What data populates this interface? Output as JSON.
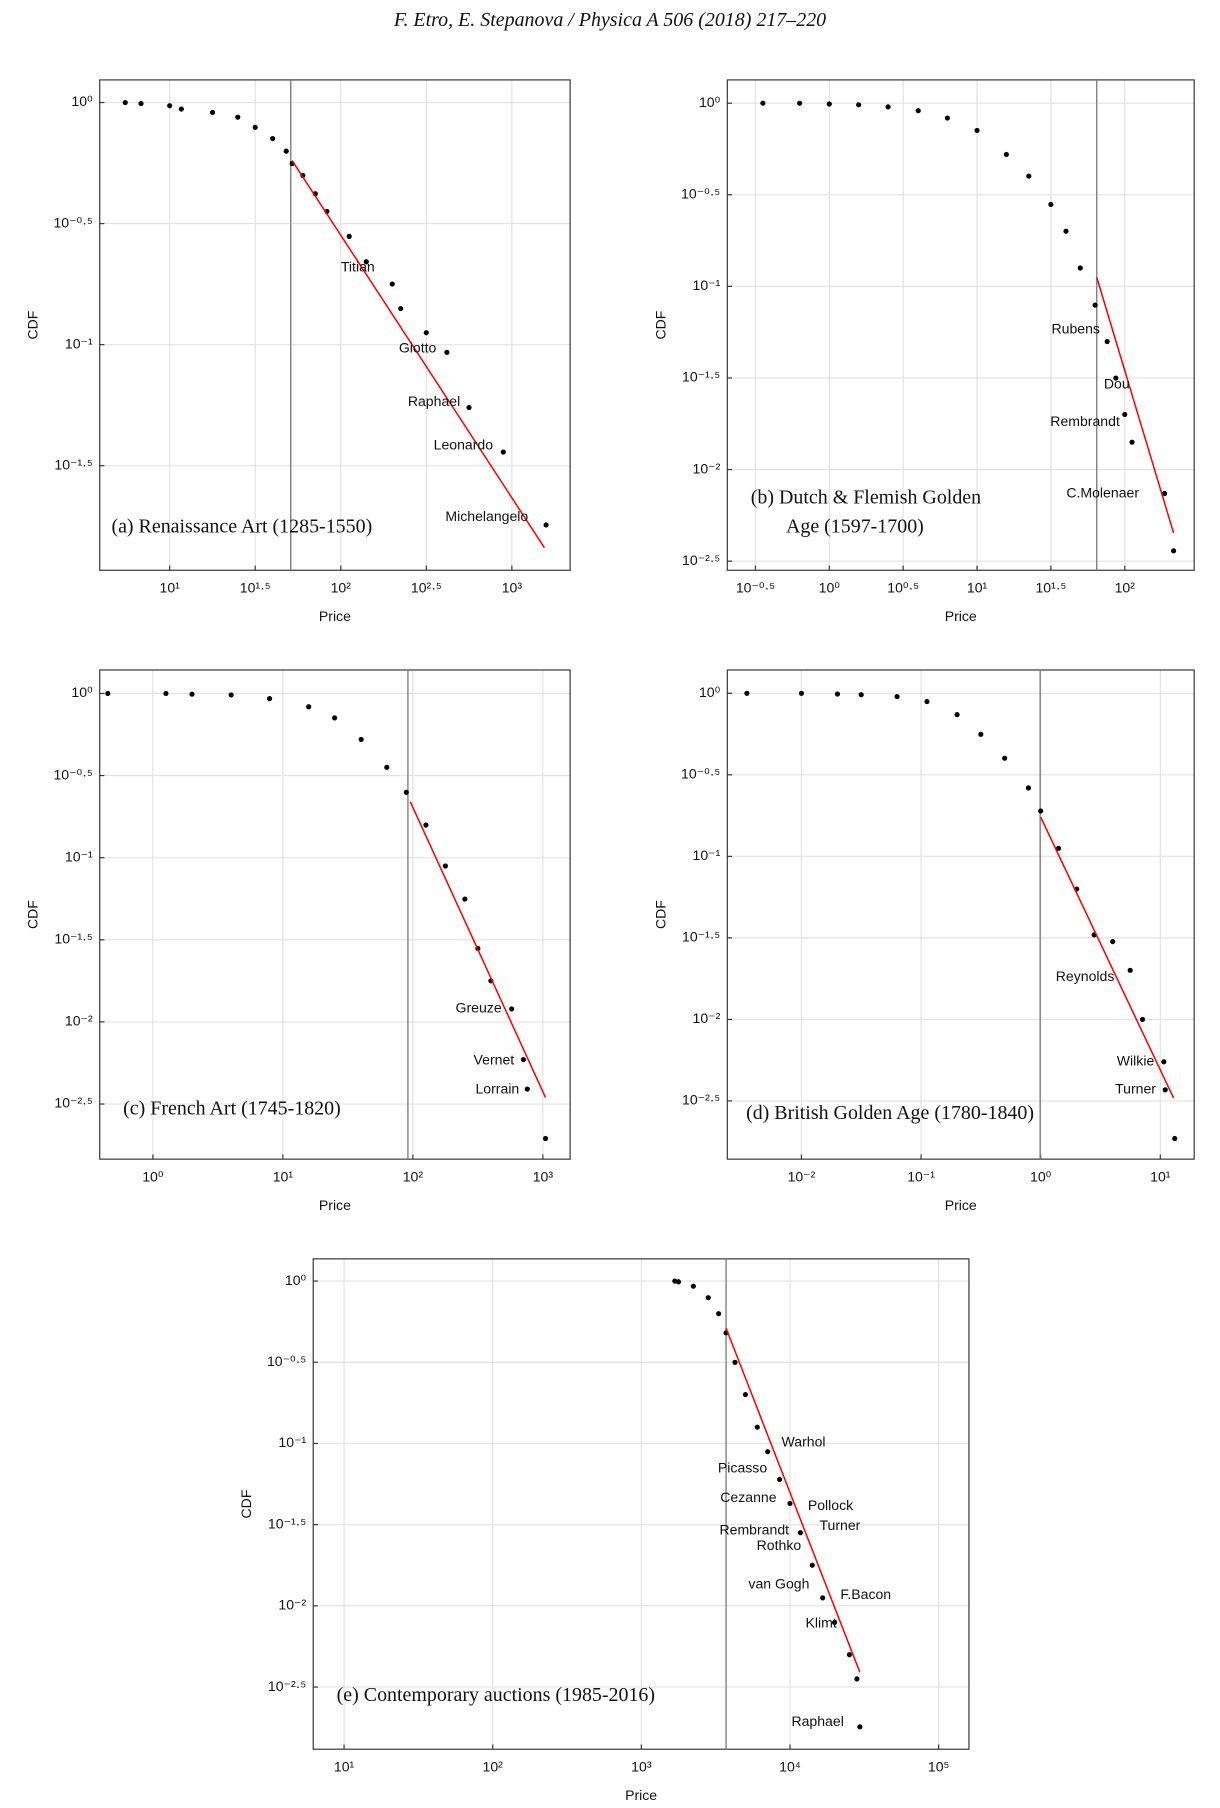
{
  "header": "F. Etro, E. Stepanova / Physica A 506 (2018) 217–220",
  "chart_data": [
    {
      "type": "scatter",
      "title": [
        "(a) Renaissance Art (1285-1550)"
      ],
      "xlabel": "Price",
      "ylabel": "CDF",
      "log_x": true,
      "log_y": true,
      "grid": true,
      "xlim": [
        3.9,
        2190
      ],
      "ylim": [
        0.0117,
        1.24
      ],
      "xticks": [
        {
          "value": 10,
          "label": "10¹"
        },
        {
          "value": 31.62,
          "label": "10¹·⁵"
        },
        {
          "value": 100,
          "label": "10²"
        },
        {
          "value": 316.2,
          "label": "10²·⁵"
        },
        {
          "value": 1000,
          "label": "10³"
        }
      ],
      "yticks": [
        {
          "value": 1,
          "label": "10⁰"
        },
        {
          "value": 0.3162,
          "label": "10⁻⁰·⁵"
        },
        {
          "value": 0.1,
          "label": "10⁻¹"
        },
        {
          "value": 0.03162,
          "label": "10⁻¹·⁵"
        }
      ],
      "x": [
        5.5,
        6.8,
        10,
        11.7,
        17.8,
        25,
        31.6,
        40,
        48,
        52,
        60,
        71,
        83,
        112,
        141,
        200,
        224,
        316,
        417,
        562,
        891,
        1585
      ],
      "values": [
        1,
        0.99,
        0.97,
        0.94,
        0.91,
        0.87,
        0.79,
        0.71,
        0.63,
        0.56,
        0.5,
        0.42,
        0.355,
        0.28,
        0.22,
        0.178,
        0.141,
        0.112,
        0.093,
        0.055,
        0.036,
        0.018
      ],
      "color": "#000000",
      "fit": {
        "x": [
          52,
          1549
        ],
        "values": [
          0.575,
          0.0145
        ],
        "color": "#ff0000"
      },
      "threshold": {
        "value": 51,
        "color": "#808080"
      },
      "annotations": [
        "Titian",
        "Giotto",
        "Raphael",
        "Leonardo",
        "Michelangelo"
      ]
    },
    {
      "type": "scatter",
      "title": [
        "(b) Dutch & Flemish Golden",
        "Age (1597-1700)"
      ],
      "xlabel": "Price",
      "ylabel": "CDF",
      "log_x": true,
      "log_y": true,
      "grid": true,
      "xlim": [
        0.204,
        295
      ],
      "ylim": [
        0.00282,
        1.34
      ],
      "xticks": [
        {
          "value": 0.3162,
          "label": "10⁻⁰·⁵"
        },
        {
          "value": 1,
          "label": "10⁰"
        },
        {
          "value": 3.162,
          "label": "10⁰·⁵"
        },
        {
          "value": 10,
          "label": "10¹"
        },
        {
          "value": 31.62,
          "label": "10¹·⁵"
        },
        {
          "value": 100,
          "label": "10²"
        }
      ],
      "yticks": [
        {
          "value": 1,
          "label": "10⁰"
        },
        {
          "value": 0.3162,
          "label": "10⁻⁰·⁵"
        },
        {
          "value": 0.1,
          "label": "10⁻¹"
        },
        {
          "value": 0.03162,
          "label": "10⁻¹·⁵"
        },
        {
          "value": 0.01,
          "label": "10⁻²"
        },
        {
          "value": 0.003162,
          "label": "10⁻²·⁵"
        }
      ],
      "x": [
        0.355,
        0.63,
        1,
        1.58,
        2.5,
        4,
        6.3,
        10,
        15.8,
        22.4,
        31.6,
        40,
        50,
        63,
        76,
        87,
        100,
        112,
        186,
        214
      ],
      "values": [
        1,
        1,
        0.99,
        0.98,
        0.955,
        0.91,
        0.83,
        0.71,
        0.525,
        0.4,
        0.28,
        0.2,
        0.126,
        0.079,
        0.05,
        0.0316,
        0.02,
        0.0141,
        0.0074,
        0.0036
      ],
      "color": "#000000",
      "fit": {
        "x": [
          64.6,
          214
        ],
        "values": [
          0.112,
          0.0045
        ],
        "color": "#ff0000"
      },
      "threshold": {
        "value": 64.6,
        "color": "#808080"
      },
      "annotations": [
        "Rubens",
        "Dou",
        "Rembrandt",
        "C.Molenaer"
      ]
    },
    {
      "type": "scatter",
      "title": [
        "(c) French Art (1745-1820)"
      ],
      "xlabel": "Price",
      "ylabel": "CDF",
      "log_x": true,
      "log_y": true,
      "grid": true,
      "xlim": [
        0.39,
        1620
      ],
      "ylim": [
        0.00146,
        1.39
      ],
      "xticks": [
        {
          "value": 1,
          "label": "10⁰"
        },
        {
          "value": 10,
          "label": "10¹"
        },
        {
          "value": 100,
          "label": "10²"
        },
        {
          "value": 1000,
          "label": "10³"
        }
      ],
      "yticks": [
        {
          "value": 1,
          "label": "10⁰"
        },
        {
          "value": 0.3162,
          "label": "10⁻⁰·⁵"
        },
        {
          "value": 0.1,
          "label": "10⁻¹"
        },
        {
          "value": 0.03162,
          "label": "10⁻¹·⁵"
        },
        {
          "value": 0.01,
          "label": "10⁻²"
        },
        {
          "value": 0.003162,
          "label": "10⁻²·⁵"
        }
      ],
      "x": [
        0.45,
        1.26,
        2,
        4,
        7.9,
        15.8,
        25,
        40,
        63,
        89,
        126,
        178,
        251,
        316,
        398,
        575,
        708,
        759,
        1047
      ],
      "values": [
        1,
        1,
        0.99,
        0.98,
        0.93,
        0.83,
        0.71,
        0.525,
        0.355,
        0.25,
        0.158,
        0.089,
        0.056,
        0.028,
        0.0178,
        0.012,
        0.0059,
        0.0039,
        0.00195
      ],
      "color": "#000000",
      "fit": {
        "x": [
          95.5,
          1047
        ],
        "values": [
          0.219,
          0.00347
        ],
        "color": "#ff0000"
      },
      "threshold": {
        "value": 91.6,
        "color": "#808080"
      },
      "annotations": [
        "Greuze",
        "Vernet",
        "Lorrain"
      ]
    },
    {
      "type": "scatter",
      "title": [
        "(d) British Golden Age (1780-1840)"
      ],
      "xlabel": "Price",
      "ylabel": "CDF",
      "log_x": true,
      "log_y": true,
      "grid": true,
      "xlim": [
        0.0024,
        19.2
      ],
      "ylim": [
        0.00139,
        1.39
      ],
      "xticks": [
        {
          "value": 0.01,
          "label": "10⁻²"
        },
        {
          "value": 0.1,
          "label": "10⁻¹"
        },
        {
          "value": 1,
          "label": "10⁰"
        },
        {
          "value": 10,
          "label": "10¹"
        }
      ],
      "yticks": [
        {
          "value": 1,
          "label": "10⁰"
        },
        {
          "value": 0.3162,
          "label": "10⁻⁰·⁵"
        },
        {
          "value": 0.1,
          "label": "10⁻¹"
        },
        {
          "value": 0.03162,
          "label": "10⁻¹·⁵"
        },
        {
          "value": 0.01,
          "label": "10⁻²"
        },
        {
          "value": 0.003162,
          "label": "10⁻²·⁵"
        }
      ],
      "x": [
        0.0035,
        0.01,
        0.02,
        0.0316,
        0.063,
        0.112,
        0.2,
        0.316,
        0.5,
        0.79,
        1,
        1.41,
        2,
        2.8,
        4,
        5.6,
        7.1,
        10.7,
        11,
        13.2
      ],
      "values": [
        1,
        1,
        0.99,
        0.98,
        0.955,
        0.89,
        0.74,
        0.56,
        0.4,
        0.263,
        0.19,
        0.112,
        0.063,
        0.033,
        0.03,
        0.02,
        0.01,
        0.0055,
        0.0037,
        0.00186
      ],
      "color": "#000000",
      "fit": {
        "x": [
          1,
          12.9
        ],
        "values": [
          0.174,
          0.0033
        ],
        "color": "#ff0000"
      },
      "threshold": {
        "value": 0.99,
        "color": "#808080"
      },
      "annotations": [
        "Reynolds",
        "Wilkie",
        "Turner"
      ]
    },
    {
      "type": "scatter",
      "title": [
        "(e) Contemporary auctions (1985-2016)"
      ],
      "xlabel": "Price",
      "ylabel": "CDF",
      "log_x": true,
      "log_y": true,
      "grid": true,
      "xlim": [
        6.2,
        160000
      ],
      "ylim": [
        0.00131,
        1.37
      ],
      "xticks": [
        {
          "value": 10,
          "label": "10¹"
        },
        {
          "value": 100,
          "label": "10²"
        },
        {
          "value": 1000,
          "label": "10³"
        },
        {
          "value": 10000,
          "label": "10⁴"
        },
        {
          "value": 100000,
          "label": "10⁵"
        }
      ],
      "yticks": [
        {
          "value": 1,
          "label": "10⁰"
        },
        {
          "value": 0.3162,
          "label": "10⁻⁰·⁵"
        },
        {
          "value": 0.1,
          "label": "10⁻¹"
        },
        {
          "value": 0.03162,
          "label": "10⁻¹·⁵"
        },
        {
          "value": 0.01,
          "label": "10⁻²"
        },
        {
          "value": 0.003162,
          "label": "10⁻²·⁵"
        }
      ],
      "x": [
        1679,
        1778,
        2239,
        2818,
        3311,
        3715,
        4266,
        5012,
        6026,
        7079,
        8511,
        10000,
        11750,
        14125,
        16600,
        19950,
        25120,
        28200,
        29500
      ],
      "values": [
        1,
        0.99,
        0.93,
        0.79,
        0.63,
        0.48,
        0.316,
        0.2,
        0.126,
        0.089,
        0.06,
        0.0427,
        0.0282,
        0.0178,
        0.0112,
        0.0079,
        0.005,
        0.00355,
        0.0018
      ],
      "color": "#000000",
      "fit": {
        "x": [
          3715,
          29500
        ],
        "values": [
          0.513,
          0.0039
        ],
        "color": "#ff0000"
      },
      "threshold": {
        "value": 3715,
        "color": "#808080"
      },
      "annotations": [
        "Warhol",
        "Picasso",
        "Cezanne",
        "Pollock",
        "Turner",
        "Rembrandt",
        "Rothko",
        "van Gogh",
        "F.Bacon",
        "Klimt",
        "Raphael"
      ]
    }
  ]
}
